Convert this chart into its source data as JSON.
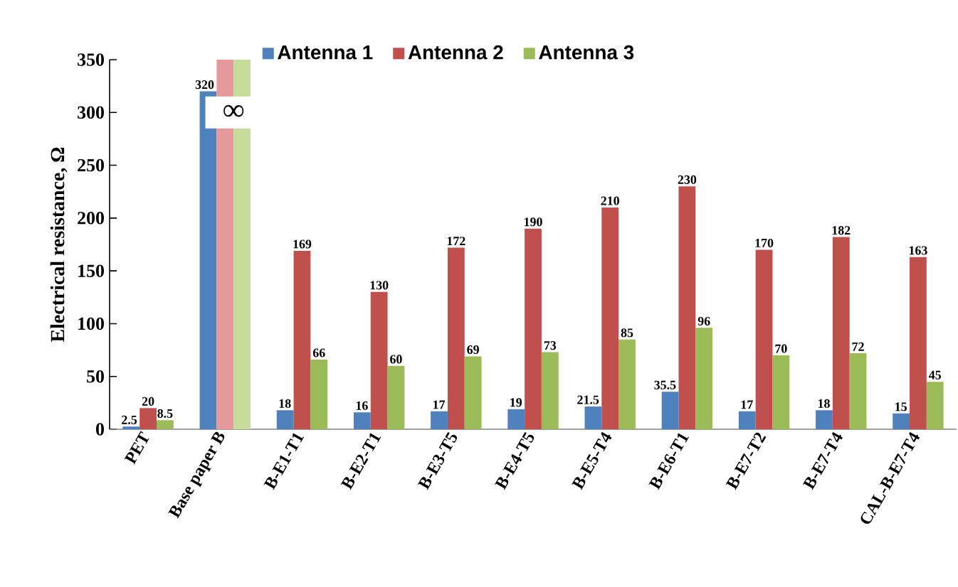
{
  "chart_data": {
    "type": "bar",
    "ylabel": "Electrical resistance, Ω",
    "categories": [
      "PET",
      "Base paper B",
      "B-E1-T1",
      "B-E2-T1",
      "B-E3-T5",
      "B-E4-T5",
      "B-E5-T4",
      "B-E6-T1",
      "B-E7-T2",
      "B-E7-T4",
      "CAL-B-E7-T4"
    ],
    "series": [
      {
        "name": "Antenna 1",
        "color": "#4f81bd",
        "values": [
          2.5,
          320,
          18,
          16,
          17,
          19,
          21.5,
          35.5,
          17,
          18,
          15
        ],
        "value_labels": [
          "2.5",
          "320",
          "18",
          "16",
          "17",
          "19",
          "21.5",
          "35.5",
          "17",
          "18",
          "15"
        ]
      },
      {
        "name": "Antenna 2",
        "color": "#c0504d",
        "colors": [
          "#c0504d",
          "#e6999a",
          "#c0504d",
          "#c0504d",
          "#c0504d",
          "#c0504d",
          "#c0504d",
          "#c0504d",
          "#c0504d",
          "#c0504d",
          "#c0504d"
        ],
        "values": [
          20,
          350,
          169,
          130,
          172,
          190,
          210,
          230,
          170,
          182,
          163
        ],
        "value_labels": [
          "20",
          null,
          "169",
          "130",
          "172",
          "190",
          "210",
          "230",
          "170",
          "182",
          "163"
        ]
      },
      {
        "name": "Antenna 3",
        "color": "#9bbb59",
        "colors": [
          "#9bbb59",
          "#c6dc9a",
          "#9bbb59",
          "#9bbb59",
          "#9bbb59",
          "#9bbb59",
          "#9bbb59",
          "#9bbb59",
          "#9bbb59",
          "#9bbb59",
          "#9bbb59"
        ],
        "values": [
          8.5,
          350,
          66,
          60,
          69,
          73,
          85,
          96,
          70,
          72,
          45
        ],
        "value_labels": [
          "8.5",
          null,
          "66",
          "60",
          "69",
          "73",
          "85",
          "96",
          "70",
          "72",
          "45"
        ]
      }
    ],
    "annotations": [
      {
        "text": "∞",
        "x": "Base paper B",
        "y": 300
      }
    ],
    "ylim": [
      0,
      350
    ],
    "yticks": [
      0,
      50,
      100,
      150,
      200,
      250,
      300,
      350
    ],
    "legend": "top",
    "grid": false
  }
}
